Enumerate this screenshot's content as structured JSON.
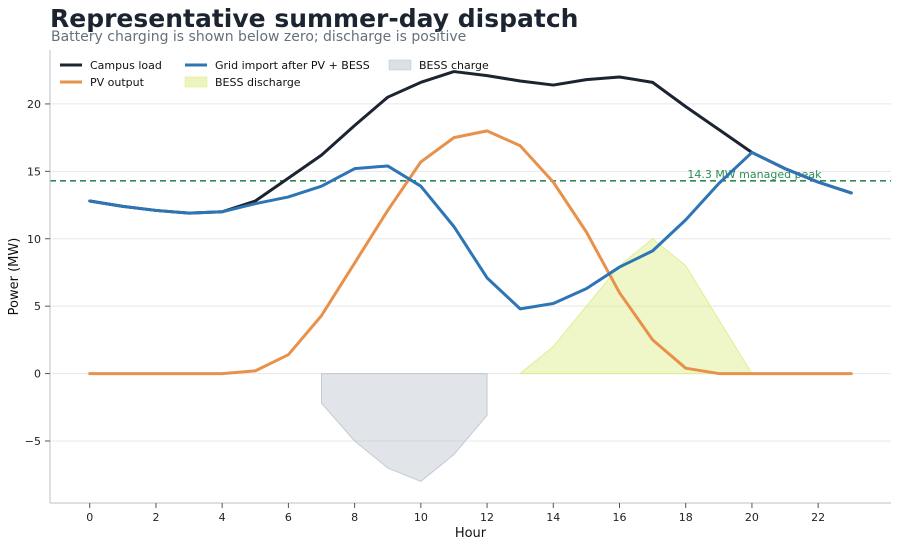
{
  "chart_data": {
    "type": "line",
    "title": "Representative summer-day dispatch",
    "subtitle": "Battery charging is shown below zero; discharge is positive",
    "xlabel": "Hour",
    "ylabel": "Power (MW)",
    "xlim": [
      -1.2,
      24.2
    ],
    "ylim": [
      -9.6,
      24.0
    ],
    "xticks": [
      0,
      2,
      4,
      6,
      8,
      10,
      12,
      14,
      16,
      18,
      20,
      22
    ],
    "yticks": [
      -5,
      0,
      5,
      10,
      15,
      20
    ],
    "ytick_labels": [
      "−5",
      "0",
      "5",
      "10",
      "15",
      "20"
    ],
    "grid": "horizontal",
    "legend_position": "top-left",
    "x": [
      0,
      1,
      2,
      3,
      4,
      5,
      6,
      7,
      8,
      9,
      10,
      11,
      12,
      13,
      14,
      15,
      16,
      17,
      18,
      19,
      20,
      21,
      22,
      23
    ],
    "series": [
      {
        "name": "Campus load",
        "kind": "line",
        "color": "#1b2430",
        "values": [
          12.8,
          12.4,
          12.1,
          11.9,
          12.0,
          12.8,
          14.5,
          16.2,
          18.4,
          20.5,
          21.6,
          22.4,
          22.1,
          21.7,
          21.4,
          21.8,
          22.0,
          21.6,
          19.8,
          18.1,
          16.4,
          15.2,
          14.2,
          13.4
        ]
      },
      {
        "name": "PV output",
        "kind": "line",
        "color": "#e8914a",
        "values": [
          0,
          0,
          0,
          0,
          0,
          0.2,
          1.4,
          4.3,
          8.2,
          12.1,
          15.7,
          17.5,
          18.0,
          16.9,
          14.2,
          10.5,
          6.0,
          2.5,
          0.4,
          0,
          0,
          0,
          0,
          0
        ]
      },
      {
        "name": "Grid import after PV + BESS",
        "kind": "line",
        "color": "#2e75b6",
        "values": [
          12.8,
          12.4,
          12.1,
          11.9,
          12.0,
          12.6,
          13.1,
          13.9,
          15.2,
          15.4,
          13.9,
          10.9,
          7.1,
          4.8,
          5.2,
          6.3,
          7.9,
          9.1,
          11.4,
          14.1,
          16.4,
          15.2,
          14.2,
          13.4
        ]
      },
      {
        "name": "BESS discharge",
        "kind": "area",
        "color": "#d9ec7d",
        "x": [
          13,
          14,
          15,
          16,
          17,
          18,
          19,
          20
        ],
        "values": [
          0,
          2.0,
          5.0,
          8.0,
          10.0,
          8.0,
          4.0,
          0
        ]
      },
      {
        "name": "BESS charge",
        "kind": "area",
        "color": "#b8c2cb",
        "x": [
          7,
          8,
          9,
          10,
          11,
          12
        ],
        "values": [
          -2.2,
          -5.0,
          -7.0,
          -8.0,
          -6.0,
          -3.1
        ]
      }
    ],
    "reference_line": {
      "value": 14.3,
      "label": "14.3 MW managed peak",
      "color": "#2e8b57"
    }
  }
}
